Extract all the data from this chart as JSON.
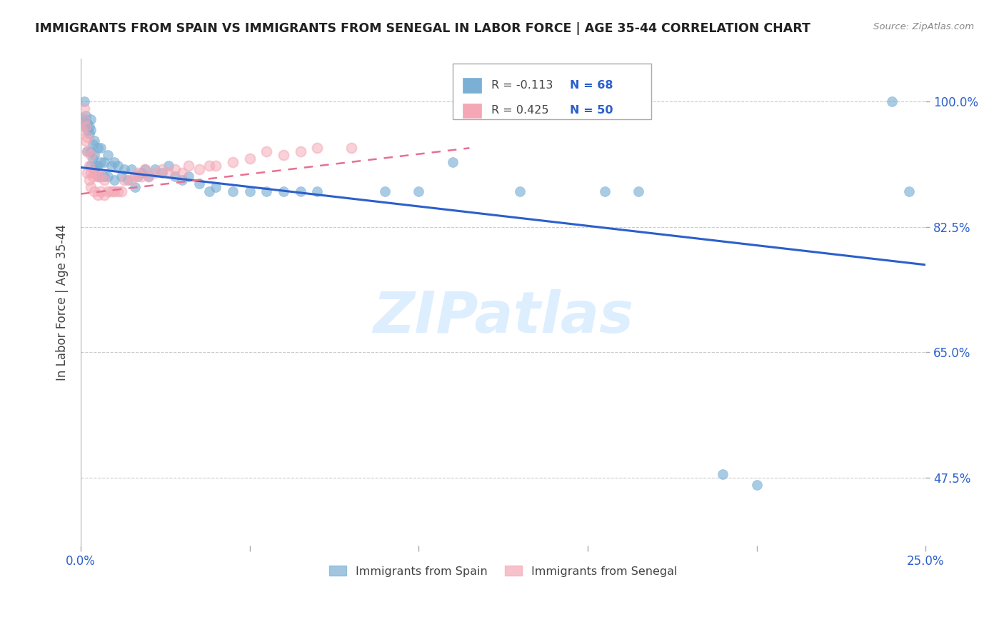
{
  "title": "IMMIGRANTS FROM SPAIN VS IMMIGRANTS FROM SENEGAL IN LABOR FORCE | AGE 35-44 CORRELATION CHART",
  "source_text": "Source: ZipAtlas.com",
  "ylabel": "In Labor Force | Age 35-44",
  "xlim": [
    0.0,
    0.25
  ],
  "ylim": [
    0.38,
    1.06
  ],
  "x_ticks": [
    0.0,
    0.05,
    0.1,
    0.15,
    0.2,
    0.25
  ],
  "x_tick_labels": [
    "0.0%",
    "",
    "",
    "",
    "",
    "25.0%"
  ],
  "y_ticks": [
    0.475,
    0.65,
    0.825,
    1.0
  ],
  "y_tick_labels": [
    "47.5%",
    "65.0%",
    "82.5%",
    "100.0%"
  ],
  "grid_color": "#cccccc",
  "background_color": "#ffffff",
  "spain_color": "#7bafd4",
  "spain_edge_color": "#7bafd4",
  "senegal_face_color": "#f4a7b5",
  "senegal_edge_color": "#f4a7b5",
  "spain_line_color": "#2b5fcc",
  "senegal_line_color": "#e87090",
  "watermark_color": "#ddeeff",
  "title_color": "#222222",
  "source_color": "#888888",
  "tick_color": "#2b5fcc",
  "ylabel_color": "#444444",
  "legend_N_color": "#2b5fcc",
  "legend_R_color": "#444444",
  "legend_border_color": "#aaaaaa",
  "spain_scatter_x": [
    0.0005,
    0.001,
    0.001,
    0.0015,
    0.0015,
    0.002,
    0.002,
    0.002,
    0.0025,
    0.0025,
    0.003,
    0.003,
    0.003,
    0.003,
    0.0035,
    0.0035,
    0.004,
    0.004,
    0.004,
    0.0045,
    0.005,
    0.005,
    0.005,
    0.006,
    0.006,
    0.006,
    0.007,
    0.007,
    0.008,
    0.008,
    0.009,
    0.01,
    0.01,
    0.011,
    0.012,
    0.013,
    0.014,
    0.015,
    0.016,
    0.017,
    0.018,
    0.019,
    0.02,
    0.022,
    0.024,
    0.026,
    0.028,
    0.03,
    0.032,
    0.035,
    0.038,
    0.04,
    0.045,
    0.05,
    0.055,
    0.06,
    0.065,
    0.07,
    0.09,
    0.1,
    0.11,
    0.13,
    0.155,
    0.165,
    0.19,
    0.2,
    0.24,
    0.245
  ],
  "spain_scatter_y": [
    0.97,
    0.975,
    1.0,
    0.965,
    0.98,
    0.93,
    0.96,
    0.97,
    0.955,
    0.965,
    0.91,
    0.93,
    0.96,
    0.975,
    0.92,
    0.94,
    0.905,
    0.925,
    0.945,
    0.91,
    0.895,
    0.91,
    0.935,
    0.895,
    0.915,
    0.935,
    0.895,
    0.915,
    0.895,
    0.925,
    0.91,
    0.89,
    0.915,
    0.91,
    0.895,
    0.905,
    0.89,
    0.905,
    0.88,
    0.895,
    0.9,
    0.905,
    0.895,
    0.905,
    0.9,
    0.91,
    0.895,
    0.89,
    0.895,
    0.885,
    0.875,
    0.88,
    0.875,
    0.875,
    0.875,
    0.875,
    0.875,
    0.875,
    0.875,
    0.875,
    0.915,
    0.875,
    0.875,
    0.875,
    0.48,
    0.465,
    1.0,
    0.875
  ],
  "senegal_scatter_x": [
    0.0005,
    0.001,
    0.001,
    0.0015,
    0.0015,
    0.002,
    0.002,
    0.002,
    0.0025,
    0.0025,
    0.003,
    0.003,
    0.003,
    0.0035,
    0.004,
    0.004,
    0.005,
    0.005,
    0.006,
    0.006,
    0.007,
    0.007,
    0.008,
    0.009,
    0.01,
    0.011,
    0.012,
    0.013,
    0.015,
    0.016,
    0.017,
    0.018,
    0.019,
    0.02,
    0.022,
    0.024,
    0.026,
    0.028,
    0.03,
    0.032,
    0.035,
    0.038,
    0.04,
    0.045,
    0.05,
    0.055,
    0.06,
    0.065,
    0.07,
    0.08
  ],
  "senegal_scatter_y": [
    0.96,
    0.975,
    0.99,
    0.945,
    0.965,
    0.9,
    0.93,
    0.95,
    0.89,
    0.91,
    0.88,
    0.9,
    0.925,
    0.895,
    0.875,
    0.9,
    0.87,
    0.895,
    0.875,
    0.895,
    0.87,
    0.89,
    0.875,
    0.875,
    0.875,
    0.875,
    0.875,
    0.89,
    0.89,
    0.895,
    0.9,
    0.895,
    0.905,
    0.895,
    0.9,
    0.905,
    0.9,
    0.905,
    0.9,
    0.91,
    0.905,
    0.91,
    0.91,
    0.915,
    0.92,
    0.93,
    0.925,
    0.93,
    0.935,
    0.935
  ],
  "spain_trend_x": [
    0.0,
    0.25
  ],
  "spain_trend_y": [
    0.908,
    0.772
  ],
  "senegal_trend_x": [
    0.0,
    0.115
  ],
  "senegal_trend_y": [
    0.871,
    0.935
  ]
}
